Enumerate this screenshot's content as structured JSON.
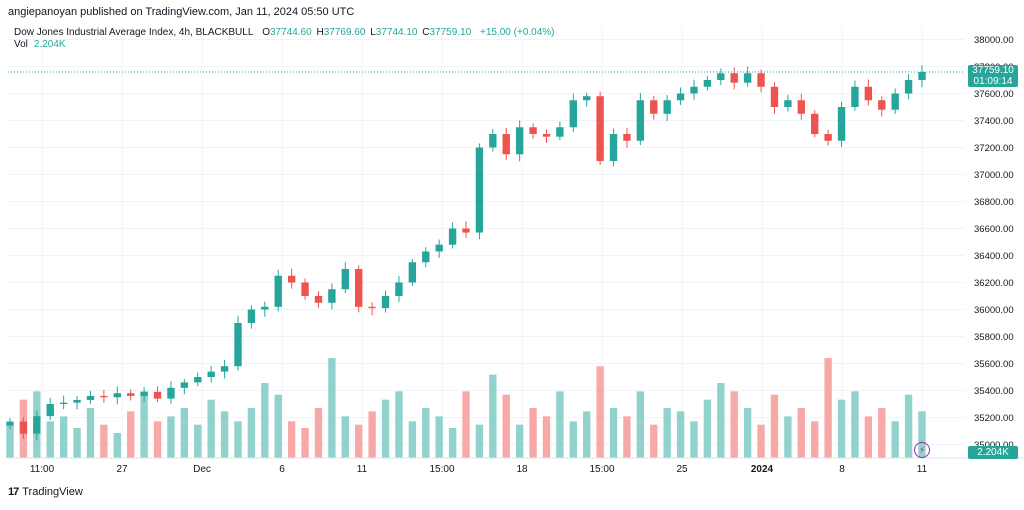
{
  "header": {
    "published_line": "angiepanoyan published on TradingView.com, Jan 11, 2024 05:50 UTC"
  },
  "legend": {
    "symbol": "Dow Jones Industrial Average Index, 4h, BLACKBULL",
    "open_label": "O",
    "open": "37744.60",
    "high_label": "H",
    "high": "37769.60",
    "low_label": "L",
    "low": "37744.10",
    "close_label": "C",
    "close": "37759.10",
    "change": "+15.00 (+0.04%)",
    "vol_label": "Vol",
    "vol_value": "2.204K"
  },
  "price_tag": {
    "price": "37759.10",
    "countdown": "01:09:14"
  },
  "volume_tag": "2.204K",
  "branding": {
    "logo_text": "17",
    "name": "TradingView"
  },
  "colors": {
    "up": "#26a69a",
    "down": "#ef5350",
    "up_vol": "#92d2cc",
    "down_vol": "#f7a9a7"
  },
  "chart_data": {
    "type": "candlestick",
    "title": "Dow Jones Industrial Average Index, 4h, BLACKBULL",
    "ylim": [
      34900,
      38100
    ],
    "y_ticks": [
      "38000.00",
      "37800.00",
      "37600.00",
      "37400.00",
      "37200.00",
      "37000.00",
      "36800.00",
      "36600.00",
      "36400.00",
      "36200.00",
      "36000.00",
      "35800.00",
      "35600.00",
      "35400.00",
      "35200.00",
      "35000.00"
    ],
    "x_ticks": [
      "11:00",
      "27",
      "Dec",
      "6",
      "11",
      "15:00",
      "18",
      "15:00",
      "25",
      "2024",
      "8",
      "11"
    ],
    "last_price": 37759.1,
    "grid": true,
    "close_series": [
      35170,
      35080,
      35210,
      35300,
      35310,
      35330,
      35360,
      35350,
      35380,
      35360,
      35390,
      35340,
      35420,
      35460,
      35500,
      35540,
      35580,
      35900,
      36000,
      36020,
      36250,
      36200,
      36100,
      36050,
      36150,
      36300,
      36020,
      36010,
      36100,
      36200,
      36350,
      36430,
      36480,
      36600,
      36570,
      37200,
      37300,
      37150,
      37350,
      37300,
      37280,
      37350,
      37550,
      37580,
      37100,
      37300,
      37250,
      37550,
      37450,
      37550,
      37600,
      37650,
      37700,
      37750,
      37680,
      37750,
      37650,
      37500,
      37550,
      37450,
      37300,
      37250,
      37500,
      37650,
      37550,
      37480,
      37600,
      37700,
      37759
    ],
    "volume_series": [
      20,
      35,
      40,
      22,
      25,
      18,
      30,
      20,
      15,
      28,
      40,
      22,
      25,
      30,
      20,
      35,
      28,
      22,
      30,
      45,
      38,
      22,
      18,
      30,
      60,
      25,
      20,
      28,
      35,
      40,
      22,
      30,
      25,
      18,
      40,
      20,
      50,
      38,
      20,
      30,
      25,
      40,
      22,
      28,
      55,
      30,
      25,
      40,
      20,
      30,
      28,
      22,
      35,
      45,
      40,
      30,
      20,
      38,
      25,
      30,
      22,
      60,
      35,
      40,
      25,
      30,
      22,
      38,
      28
    ]
  }
}
